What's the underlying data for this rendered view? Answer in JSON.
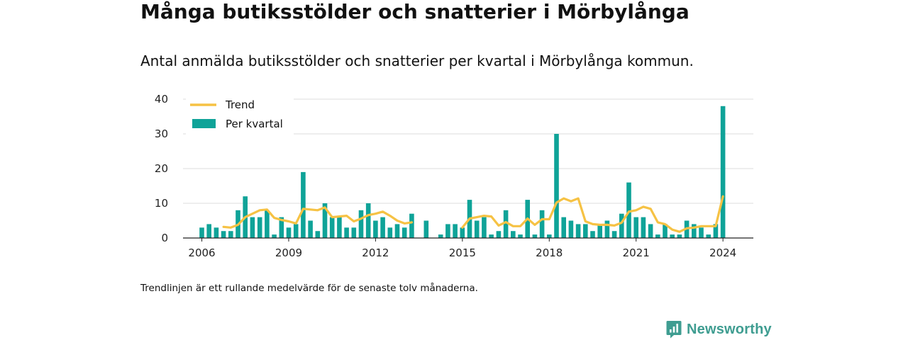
{
  "header": {
    "title": "Många butiksstölder och snatterier i Mörbylånga",
    "subtitle": "Antal anmälda butiksstölder och snatterier per kvartal i Mörbylånga kommun."
  },
  "footer": {
    "note": "Trendlinjen är ett rullande medelvärde för de senaste tolv månaderna.",
    "brand": "Newsworthy"
  },
  "colors": {
    "bar": "#0fa398",
    "trend": "#f6c244",
    "grid": "#dddddd",
    "axis": "#222222",
    "brand": "#3f9d91"
  },
  "chart_data": {
    "type": "bar",
    "title": "Många butiksstölder och snatterier i Mörbylånga",
    "ylim": [
      0,
      40
    ],
    "yticks": [
      0,
      10,
      20,
      30,
      40
    ],
    "xticks": [
      2006,
      2009,
      2012,
      2015,
      2018,
      2021,
      2024
    ],
    "legend": {
      "placement": "top-left",
      "entries": [
        "Trend",
        "Per kvartal"
      ]
    },
    "grid": true,
    "series": [
      {
        "name": "Per kvartal",
        "type": "bar",
        "x": [
          2006.0,
          2006.25,
          2006.5,
          2006.75,
          2007.0,
          2007.25,
          2007.5,
          2007.75,
          2008.0,
          2008.25,
          2008.5,
          2008.75,
          2009.0,
          2009.25,
          2009.5,
          2009.75,
          2010.0,
          2010.25,
          2010.5,
          2010.75,
          2011.0,
          2011.25,
          2011.5,
          2011.75,
          2012.0,
          2012.25,
          2012.5,
          2012.75,
          2013.0,
          2013.25,
          2013.5,
          2013.75,
          2014.0,
          2014.25,
          2014.5,
          2014.75,
          2015.0,
          2015.25,
          2015.5,
          2015.75,
          2016.0,
          2016.25,
          2016.5,
          2016.75,
          2017.0,
          2017.25,
          2017.5,
          2017.75,
          2018.0,
          2018.25,
          2018.5,
          2018.75,
          2019.0,
          2019.25,
          2019.5,
          2019.75,
          2020.0,
          2020.25,
          2020.5,
          2020.75,
          2021.0,
          2021.25,
          2021.5,
          2021.75,
          2022.0,
          2022.25,
          2022.5,
          2022.75,
          2023.0,
          2023.25,
          2023.5,
          2023.75,
          2024.0
        ],
        "values": [
          3,
          4,
          3,
          2,
          2,
          8,
          12,
          6,
          6,
          8,
          1,
          6,
          3,
          4,
          19,
          5,
          2,
          10,
          6,
          6,
          3,
          3,
          8,
          10,
          5,
          6,
          3,
          4,
          3,
          7,
          0,
          5,
          0,
          1,
          4,
          4,
          3,
          11,
          5,
          6,
          1,
          2,
          8,
          2,
          1,
          11,
          1,
          8,
          1,
          30,
          6,
          5,
          4,
          4,
          2,
          4,
          5,
          2,
          7,
          16,
          6,
          6,
          4,
          1,
          4,
          1,
          1,
          5,
          4,
          3,
          1,
          4,
          38
        ]
      },
      {
        "name": "Trend",
        "type": "line",
        "x": [
          2006.75,
          2007.0,
          2007.25,
          2007.5,
          2007.75,
          2008.0,
          2008.25,
          2008.5,
          2008.75,
          2009.0,
          2009.25,
          2009.5,
          2009.75,
          2010.0,
          2010.25,
          2010.5,
          2010.75,
          2011.0,
          2011.25,
          2011.5,
          2011.75,
          2012.0,
          2012.25,
          2012.5,
          2012.75,
          2013.0,
          2013.25,
          2015.0,
          2015.25,
          2015.5,
          2015.75,
          2016.0,
          2016.25,
          2016.5,
          2016.75,
          2017.0,
          2017.25,
          2017.5,
          2017.75,
          2018.0,
          2018.25,
          2018.5,
          2018.75,
          2019.0,
          2019.25,
          2019.5,
          2019.75,
          2020.0,
          2020.25,
          2020.5,
          2020.75,
          2021.0,
          2021.25,
          2021.5,
          2021.75,
          2022.0,
          2022.25,
          2022.5,
          2022.75,
          2023.0,
          2023.25,
          2023.5,
          2023.75,
          2024.0
        ],
        "values": [
          3.2,
          3.0,
          3.8,
          6.0,
          7.0,
          8.0,
          8.2,
          5.8,
          5.2,
          4.8,
          4.2,
          8.4,
          8.2,
          8.0,
          8.8,
          6.0,
          6.2,
          6.4,
          4.8,
          5.6,
          6.6,
          7.0,
          7.6,
          6.4,
          5.0,
          4.2,
          4.5,
          3.0,
          5.6,
          6.0,
          6.4,
          6.2,
          3.6,
          4.6,
          3.4,
          3.4,
          5.6,
          3.8,
          5.4,
          5.4,
          10.2,
          11.4,
          10.6,
          11.4,
          4.8,
          4.0,
          3.8,
          3.8,
          3.6,
          4.4,
          7.6,
          8.0,
          9.0,
          8.4,
          4.5,
          4.0,
          2.4,
          1.8,
          2.8,
          3.0,
          3.4,
          3.4,
          3.4,
          12.0
        ]
      }
    ]
  }
}
